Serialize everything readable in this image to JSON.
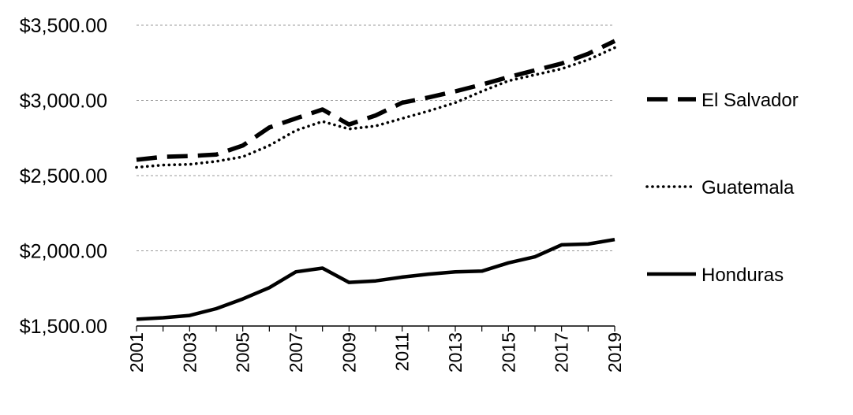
{
  "chart_data": {
    "type": "line",
    "title": "",
    "xlabel": "",
    "ylabel": "",
    "x": [
      2001,
      2002,
      2003,
      2004,
      2005,
      2006,
      2007,
      2008,
      2009,
      2010,
      2011,
      2012,
      2013,
      2014,
      2015,
      2016,
      2017,
      2018,
      2019
    ],
    "ylim": [
      1500,
      3500
    ],
    "yticks": [
      1500,
      2000,
      2500,
      3000,
      3500
    ],
    "ytick_labels": [
      "$1,500.00",
      "$2,000.00",
      "$2,500.00",
      "$3,000.00",
      "$3,500.00"
    ],
    "xtick_labels": [
      "2001",
      "2003",
      "2005",
      "2007",
      "2009",
      "2011",
      "2013",
      "2015",
      "2017",
      "2019"
    ],
    "grid": "horizontal dashed",
    "legend_position": "right",
    "series": [
      {
        "name": "El Salvador",
        "style": "dashed",
        "color": "#000000",
        "values": [
          2605,
          2625,
          2630,
          2640,
          2700,
          2820,
          2880,
          2940,
          2840,
          2900,
          2985,
          3020,
          3060,
          3105,
          3155,
          3200,
          3245,
          3310,
          3395
        ]
      },
      {
        "name": "Guatemala",
        "style": "dotted",
        "color": "#000000",
        "values": [
          2555,
          2570,
          2575,
          2595,
          2625,
          2700,
          2800,
          2860,
          2810,
          2830,
          2880,
          2930,
          2985,
          3060,
          3130,
          3170,
          3210,
          3270,
          3350
        ]
      },
      {
        "name": "Honduras",
        "style": "solid",
        "color": "#000000",
        "values": [
          1545,
          1555,
          1570,
          1615,
          1680,
          1755,
          1860,
          1885,
          1790,
          1800,
          1825,
          1845,
          1860,
          1865,
          1920,
          1960,
          2040,
          2045,
          2075
        ]
      }
    ]
  }
}
